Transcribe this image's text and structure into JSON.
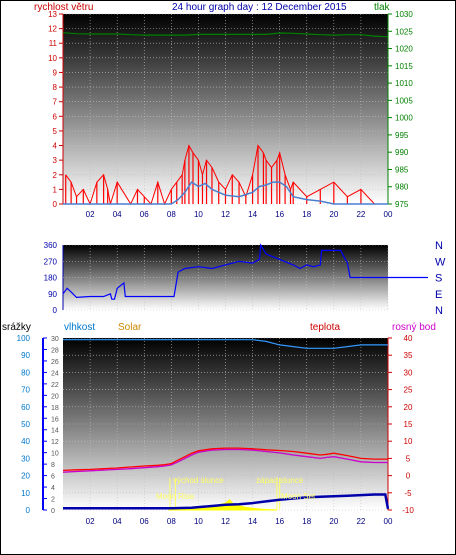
{
  "header": {
    "left_label": "rychlost větru",
    "title": "24 hour graph day : 12 December 2015",
    "right_label": "tlak"
  },
  "legend": {
    "srazky": "srážky",
    "vlhkost": "vlhkost",
    "solar": "Solar",
    "teplota": "teplota",
    "rosny_bod": "rosný bod"
  },
  "annotations": {
    "sunrise": "východ slunce",
    "sunset": "západ slunce",
    "moonrise": "Moon Rise",
    "moonset": "Moon Set"
  },
  "colors": {
    "wind": "#ff0000",
    "wind_avg": "#4a7fd0",
    "pressure": "#008000",
    "direction": "#0000ff",
    "humidity": "#3399ff",
    "temperature": "#ff0000",
    "dewpoint": "#cc00cc",
    "solar": "#ffff00",
    "rain": "#0000aa"
  },
  "chart_data": [
    {
      "type": "line",
      "name": "wind-pressure",
      "x_ticks": [
        "02",
        "04",
        "06",
        "08",
        "10",
        "12",
        "14",
        "16",
        "18",
        "20",
        "22",
        "00"
      ],
      "y_left_ticks": [
        "0",
        "1",
        "2",
        "3",
        "4",
        "5",
        "6",
        "7",
        "8",
        "9",
        "10",
        "11",
        "12",
        "13"
      ],
      "y_right_ticks": [
        "975",
        "980",
        "985",
        "990",
        "995",
        "1000",
        "1005",
        "1010",
        "1015",
        "1020",
        "1025",
        "1030"
      ],
      "ylim_left": [
        0,
        13
      ],
      "ylim_right": [
        975,
        1030
      ],
      "series": [
        {
          "key": "gust",
          "x": [
            0.2,
            0.6,
            1,
            1.5,
            2,
            2.5,
            3,
            3.3,
            3.5,
            4,
            5,
            5.5,
            6,
            6.5,
            7,
            7.5,
            8,
            8.4,
            8.8,
            9,
            9.3,
            9.6,
            10,
            10.3,
            10.6,
            11,
            11.5,
            12,
            12.5,
            13,
            13.5,
            14,
            14.4,
            14.8,
            15,
            15.4,
            15.8,
            16,
            16.4,
            16.8,
            17,
            18,
            19,
            20,
            21,
            22,
            23,
            24
          ],
          "y": [
            2,
            1.5,
            0.5,
            1,
            0,
            1.5,
            2,
            1,
            0,
            1.5,
            0,
            1,
            0.5,
            0,
            1.5,
            0,
            1,
            1.5,
            2,
            3,
            4,
            3.5,
            3,
            2,
            3,
            2.5,
            1.5,
            1,
            2,
            1.5,
            0.5,
            2,
            4,
            3.5,
            3,
            2.5,
            3,
            3.5,
            2,
            1,
            1.5,
            0.5,
            1,
            1.5,
            0.5,
            1,
            0,
            0
          ]
        },
        {
          "key": "average",
          "x": [
            0,
            2,
            4,
            6,
            8,
            8.5,
            9,
            9.5,
            10,
            10.5,
            11,
            11.5,
            12,
            13,
            14,
            14.5,
            15,
            15.5,
            16,
            16.5,
            17,
            18,
            19,
            20,
            22,
            24
          ],
          "y": [
            0,
            0,
            0,
            0,
            0,
            0.3,
            0.8,
            1.5,
            1.2,
            1.4,
            1,
            0.8,
            0.6,
            0.5,
            0.8,
            1.2,
            1.3,
            1.5,
            1.5,
            1.2,
            0.5,
            0.3,
            0.2,
            0,
            0,
            0
          ]
        },
        {
          "key": "pressure",
          "x": [
            0,
            1,
            2,
            3,
            4,
            5,
            6,
            7,
            8,
            9,
            10,
            11,
            12,
            13,
            14,
            15,
            16,
            17,
            18,
            19,
            20,
            21,
            22,
            23,
            24
          ],
          "y": [
            1024.6,
            1024.3,
            1024.2,
            1024.2,
            1024.2,
            1024.0,
            1023.9,
            1023.9,
            1023.9,
            1023.9,
            1024.1,
            1024.1,
            1024.1,
            1024.1,
            1024.1,
            1024.1,
            1024.5,
            1024.4,
            1024.2,
            1024.0,
            1023.9,
            1024.0,
            1024.0,
            1023.6,
            1023.4
          ]
        }
      ]
    },
    {
      "type": "line",
      "name": "wind-direction",
      "y_ticks": [
        "360",
        "270",
        "180",
        "90",
        "0"
      ],
      "compass": [
        "N",
        "W",
        "S",
        "E",
        "N"
      ],
      "ylim": [
        0,
        360
      ],
      "x": [
        0,
        0.3,
        0.6,
        1,
        2,
        3,
        3.5,
        3.6,
        3.8,
        4,
        4.5,
        4.6,
        4.7,
        5,
        6,
        7,
        8,
        8.2,
        8.5,
        9,
        10,
        11,
        12,
        13,
        14,
        14.5,
        14.6,
        15,
        16,
        17,
        17.5,
        18,
        18.5,
        19,
        19.1,
        20,
        20.5,
        21,
        21.2,
        22,
        23,
        24
      ],
      "y": [
        90,
        120,
        100,
        70,
        75,
        75,
        90,
        60,
        60,
        120,
        150,
        75,
        75,
        75,
        75,
        75,
        75,
        75,
        210,
        230,
        240,
        230,
        250,
        270,
        260,
        280,
        360,
        310,
        280,
        250,
        230,
        250,
        240,
        250,
        330,
        330,
        330,
        260,
        180,
        180,
        180,
        180
      ]
    },
    {
      "type": "line",
      "name": "humidity-temp-solar-rain",
      "y_left_ticks": [
        "0",
        "10",
        "20",
        "30",
        "40",
        "50",
        "60",
        "70",
        "80",
        "90",
        "100"
      ],
      "y_left2_ticks": [
        "0",
        "2",
        "4",
        "6",
        "8",
        "10",
        "12",
        "14",
        "16",
        "18",
        "20",
        "22",
        "24",
        "26",
        "28",
        "30"
      ],
      "y_right_ticks": [
        "-10",
        "-5",
        "0",
        "5",
        "10",
        "15",
        "20",
        "25",
        "30",
        "35",
        "40"
      ],
      "ylim_humidity": [
        0,
        100
      ],
      "ylim_temp": [
        -10,
        40
      ],
      "series": [
        {
          "key": "humidity",
          "x": [
            0,
            2,
            4,
            6,
            8,
            10,
            12,
            14,
            15,
            16,
            17,
            18,
            19,
            20,
            21,
            22,
            23,
            24
          ],
          "y": [
            99,
            99,
            99,
            99,
            99,
            99,
            99,
            99,
            98,
            96,
            95,
            94,
            94,
            94,
            95,
            96,
            96,
            96
          ]
        },
        {
          "key": "temperature",
          "x": [
            0,
            1,
            2,
            3,
            4,
            5,
            6,
            7,
            7.5,
            8,
            8.5,
            9,
            9.5,
            10,
            11,
            12,
            13,
            14,
            15,
            16,
            17,
            18,
            19,
            19.5,
            20,
            21,
            22,
            23,
            24
          ],
          "y": [
            1.5,
            1.7,
            1.8,
            2,
            2.2,
            2.5,
            2.8,
            3,
            3.2,
            3.5,
            4.5,
            5.5,
            6.5,
            7.2,
            7.8,
            8,
            8,
            7.8,
            7.5,
            7.3,
            7,
            6.5,
            6,
            6.2,
            6.5,
            5.8,
            5,
            4.8,
            4.8
          ]
        },
        {
          "key": "dewpoint",
          "x": [
            0,
            1,
            2,
            3,
            4,
            5,
            6,
            7,
            7.5,
            8,
            8.5,
            9,
            9.5,
            10,
            11,
            12,
            13,
            14,
            15,
            16,
            17,
            18,
            19,
            19.5,
            20,
            21,
            22,
            23,
            24
          ],
          "y": [
            1,
            1.2,
            1.4,
            1.6,
            1.8,
            2,
            2.3,
            2.6,
            2.8,
            3.1,
            4,
            5,
            6,
            6.8,
            7.4,
            7.6,
            7.6,
            7.4,
            7,
            6.6,
            6,
            5.5,
            5,
            5.3,
            5.5,
            4.8,
            4,
            3.8,
            3.8
          ]
        },
        {
          "key": "solar",
          "x": [
            7.8,
            8,
            8.5,
            9,
            9.5,
            10,
            10.5,
            11,
            11.5,
            12,
            12.3,
            12.5,
            13,
            13.5,
            14,
            14.5,
            15,
            15.5,
            15.8
          ],
          "y": [
            0,
            0.3,
            0.5,
            0.8,
            1,
            1.2,
            1.5,
            2,
            3,
            4,
            6,
            4,
            2.5,
            1.5,
            1,
            0.6,
            0.3,
            0.1,
            0
          ]
        },
        {
          "key": "rain",
          "x": [
            0,
            4,
            8,
            9.5,
            10,
            11,
            12,
            13,
            14,
            15,
            16,
            17,
            18,
            19,
            20,
            21,
            22,
            23,
            23.8,
            24
          ],
          "y": [
            0.3,
            0.3,
            0.3,
            0.4,
            0.5,
            0.7,
            0.9,
            1,
            1.2,
            1.5,
            1.8,
            2,
            2.2,
            2.3,
            2.4,
            2.5,
            2.6,
            2.7,
            2.7,
            0.2
          ]
        }
      ],
      "sunrise_hour": 7.9,
      "sunset_hour": 16.0,
      "moonrise_hour": 8.3,
      "moonset_hour": 15.8
    }
  ]
}
